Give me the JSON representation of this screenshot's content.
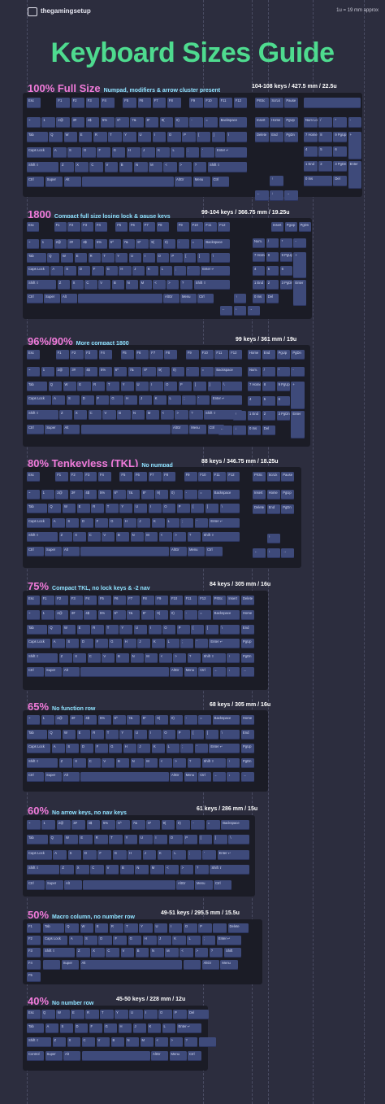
{
  "header": {
    "brand": "thegamingsetup",
    "scale_note": "1u = 19 mm approx",
    "title": "Keyboard Sizes Guide"
  },
  "sections": [
    {
      "name": "100% Full Size",
      "desc": "Numpad, modifiers & arrow cluster present",
      "spec": "104-108 keys / 427.5 mm / 22.5u"
    },
    {
      "name": "1800",
      "desc": "Compact full size losing lock & pause keys",
      "spec": "99-104 keys / 366.75 mm / 19.25u"
    },
    {
      "name": "96%/90%",
      "desc": "More compact 1800",
      "spec": "99 keys / 361 mm / 19u"
    },
    {
      "name": "80% Tenkeyless (TKL)",
      "desc": "No numpad",
      "spec": "88 keys / 346.75 mm / 18.25u"
    },
    {
      "name": "75%",
      "desc": "Compact TKL, no lock keys & -2 nav",
      "spec": "84 keys / 305 mm / 16u"
    },
    {
      "name": "65%",
      "desc": "No function row",
      "spec": "68 keys / 305 mm / 16u"
    },
    {
      "name": "60%",
      "desc": "No arrow keys, no nav keys",
      "spec": "61 keys / 286 mm / 15u"
    },
    {
      "name": "50%",
      "desc": "Macro column, no number row",
      "spec": "49-51 keys / 295.5 mm / 15.5u"
    },
    {
      "name": "40%",
      "desc": "No number row",
      "spec": "45-50 keys / 228 mm / 12u"
    }
  ],
  "key_labels": {
    "num": [
      "~",
      "1",
      "2@",
      "3#",
      "4$",
      "5%",
      "6^",
      "7&",
      "8*",
      "9(",
      "0)",
      "-",
      "=",
      "Backspace"
    ],
    "top": [
      "Tab",
      "Q",
      "W",
      "E",
      "R",
      "T",
      "Y",
      "U",
      "I",
      "O",
      "P",
      "[",
      "]",
      "\\"
    ],
    "home": [
      "Caps Lock",
      "A",
      "S",
      "D",
      "F",
      "G",
      "H",
      "J",
      "K",
      "L",
      ";",
      "'",
      "Enter ↵"
    ],
    "shift": [
      "Shift ⇧",
      "Z",
      "X",
      "C",
      "V",
      "B",
      "N",
      "M",
      "<",
      ">",
      "?",
      "Shift ⇧"
    ],
    "bottom": [
      "Ctrl",
      "Super",
      "Alt",
      "",
      "AltGr",
      "Menu",
      "Ctrl"
    ],
    "frow": [
      "Esc",
      "F1",
      "F2",
      "F3",
      "F4",
      "F5",
      "F6",
      "F7",
      "F8",
      "F9",
      "F10",
      "F11",
      "F12"
    ],
    "nav": [
      "PrtSc",
      "ScrLk",
      "Pause",
      "Insert",
      "Home",
      "PgUp",
      "Delete",
      "End",
      "PgDn"
    ],
    "numpad_top": [
      "Num Lock",
      "/",
      "*",
      "-"
    ],
    "numpad_rows": [
      "7 Home",
      "8",
      "9 PgUp",
      "4",
      "5",
      "6",
      "+",
      "1 End",
      "2",
      "3 PgDn",
      "Enter",
      "0 Ins",
      "Del"
    ],
    "compact_nav": [
      "Home",
      "End",
      "PgUp",
      "PgDn",
      "Insert",
      "Delete"
    ],
    "fortyish_top": [
      "Esc",
      "Q",
      "W",
      "E",
      "R",
      "T",
      "Y",
      "U",
      "I",
      "O",
      "P",
      "Del"
    ],
    "forty_home": [
      "Tab",
      "A",
      "S",
      "D",
      "F",
      "G",
      "H",
      "J",
      "K",
      "L",
      "Enter ↵"
    ],
    "forty_shift": [
      "Shift ⇧",
      "Z",
      "X",
      "C",
      "V",
      "B",
      "N",
      "M",
      "<",
      ">",
      "?"
    ],
    "forty_bottom": [
      "Control",
      "Super",
      "Alt",
      "",
      "AltGr",
      "Menu",
      "Ctrl"
    ],
    "fifty_macro": [
      "F1",
      "F2",
      "F3",
      "F4",
      "F5"
    ],
    "fifty_top": [
      "Tab",
      "Q",
      "W",
      "E",
      "R",
      "T",
      "Y",
      "U",
      "I",
      "O",
      "P",
      "Delete"
    ]
  }
}
